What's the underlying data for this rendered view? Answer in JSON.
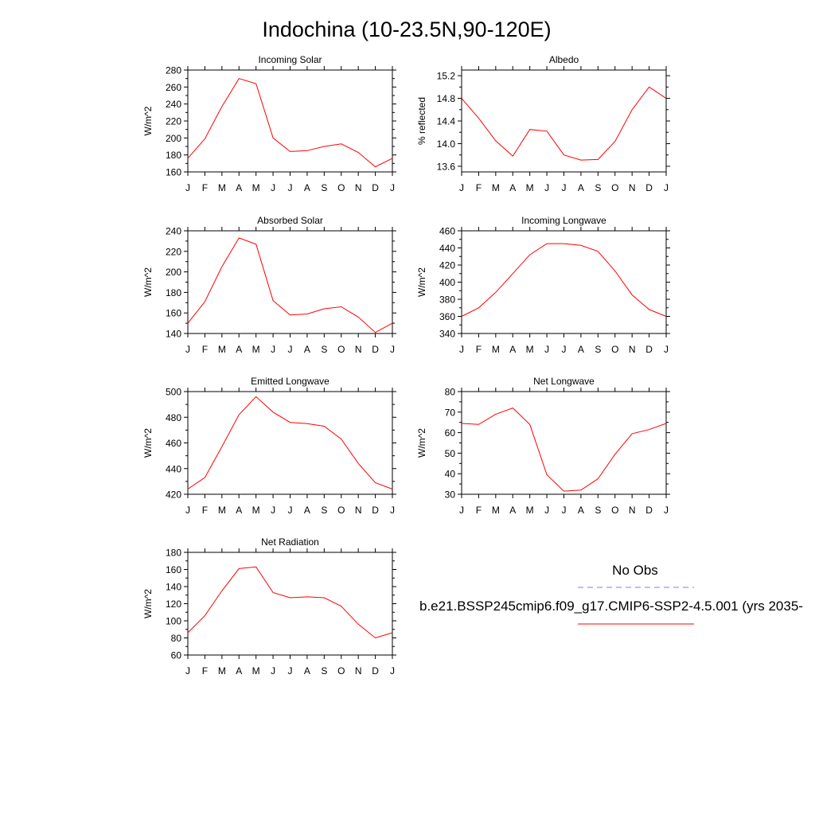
{
  "title": "Indochina (10-23.5N,90-120E)",
  "legend": {
    "obs_label": "No Obs",
    "obs_color": "#7b7bf0",
    "model_label": "b.e21.BSSP245cmip6.f09_g17.CMIP6-SSP2-4.5.001 (yrs 2035-",
    "model_color": "#ff0000"
  },
  "chart_data": [
    {
      "type": "line",
      "title": "Incoming Solar",
      "ylabel": "W/m^2",
      "x": [
        "J",
        "F",
        "M",
        "A",
        "M",
        "J",
        "J",
        "A",
        "S",
        "O",
        "N",
        "D",
        "J"
      ],
      "ylim": [
        160,
        280
      ],
      "yticks": [
        160,
        180,
        200,
        220,
        240,
        260,
        280
      ],
      "ytick_labels": [
        "160",
        "180",
        "200",
        "220",
        "240",
        "260",
        "280"
      ],
      "series": [
        {
          "values": [
            176,
            199,
            237,
            270,
            264,
            200,
            184,
            185,
            190,
            193,
            183,
            166,
            176
          ]
        }
      ]
    },
    {
      "type": "line",
      "title": "Albedo",
      "ylabel": "% reflected",
      "x": [
        "J",
        "F",
        "M",
        "A",
        "M",
        "J",
        "J",
        "A",
        "S",
        "O",
        "N",
        "D",
        "J"
      ],
      "ylim": [
        13.5,
        15.3
      ],
      "yticks": [
        13.6,
        14.0,
        14.4,
        14.8,
        15.2
      ],
      "ytick_labels": [
        "13.6",
        "14.0",
        "14.4",
        "14.8",
        "15.2"
      ],
      "series": [
        {
          "values": [
            14.8,
            14.45,
            14.05,
            13.78,
            14.25,
            14.22,
            13.8,
            13.71,
            13.72,
            14.04,
            14.6,
            15.0,
            14.8
          ]
        }
      ]
    },
    {
      "type": "line",
      "title": "Absorbed Solar",
      "ylabel": "W/m^2",
      "x": [
        "J",
        "F",
        "M",
        "A",
        "M",
        "J",
        "J",
        "A",
        "S",
        "O",
        "N",
        "D",
        "J"
      ],
      "ylim": [
        140,
        240
      ],
      "yticks": [
        140,
        160,
        180,
        200,
        220,
        240
      ],
      "ytick_labels": [
        "140",
        "160",
        "180",
        "200",
        "220",
        "240"
      ],
      "series": [
        {
          "values": [
            150,
            171,
            205,
            233,
            227,
            172,
            158,
            159,
            164,
            166,
            156,
            141,
            150
          ]
        }
      ]
    },
    {
      "type": "line",
      "title": "Incoming Longwave",
      "ylabel": "W/m^2",
      "x": [
        "J",
        "F",
        "M",
        "A",
        "M",
        "J",
        "J",
        "A",
        "S",
        "O",
        "N",
        "D",
        "J"
      ],
      "ylim": [
        340,
        460
      ],
      "yticks": [
        340,
        360,
        380,
        400,
        420,
        440,
        460
      ],
      "ytick_labels": [
        "340",
        "360",
        "380",
        "400",
        "420",
        "440",
        "460"
      ],
      "series": [
        {
          "values": [
            360,
            370,
            388,
            410,
            432,
            445,
            445,
            443,
            436,
            413,
            385,
            368,
            360
          ]
        }
      ]
    },
    {
      "type": "line",
      "title": "Emitted Longwave",
      "ylabel": "W/m^2",
      "x": [
        "J",
        "F",
        "M",
        "A",
        "M",
        "J",
        "J",
        "A",
        "S",
        "O",
        "N",
        "D",
        "J"
      ],
      "ylim": [
        420,
        500
      ],
      "yticks": [
        420,
        440,
        460,
        480,
        500
      ],
      "ytick_labels": [
        "420",
        "440",
        "460",
        "480",
        "500"
      ],
      "series": [
        {
          "values": [
            424,
            433,
            457,
            482,
            496,
            484,
            476,
            475,
            473,
            463,
            444,
            429,
            424
          ]
        }
      ]
    },
    {
      "type": "line",
      "title": "Net Longwave",
      "ylabel": "W/m^2",
      "x": [
        "J",
        "F",
        "M",
        "A",
        "M",
        "J",
        "J",
        "A",
        "S",
        "O",
        "N",
        "D",
        "J"
      ],
      "ylim": [
        30,
        80
      ],
      "yticks": [
        30,
        40,
        50,
        60,
        70,
        80
      ],
      "ytick_labels": [
        "30",
        "40",
        "50",
        "60",
        "70",
        "80"
      ],
      "series": [
        {
          "values": [
            64.5,
            64,
            69,
            72,
            64,
            39.5,
            31.5,
            32,
            37.5,
            49.5,
            59.5,
            61.5,
            64.5
          ]
        }
      ]
    },
    {
      "type": "line",
      "title": "Net Radiation",
      "ylabel": "W/m^2",
      "x": [
        "J",
        "F",
        "M",
        "A",
        "M",
        "J",
        "J",
        "A",
        "S",
        "O",
        "N",
        "D",
        "J"
      ],
      "ylim": [
        60,
        180
      ],
      "yticks": [
        60,
        80,
        100,
        120,
        140,
        160,
        180
      ],
      "ytick_labels": [
        "60",
        "80",
        "100",
        "120",
        "140",
        "160",
        "180"
      ],
      "series": [
        {
          "values": [
            86,
            106,
            135,
            161,
            163,
            133,
            127,
            128,
            127,
            117,
            96,
            80,
            86
          ]
        }
      ]
    }
  ]
}
